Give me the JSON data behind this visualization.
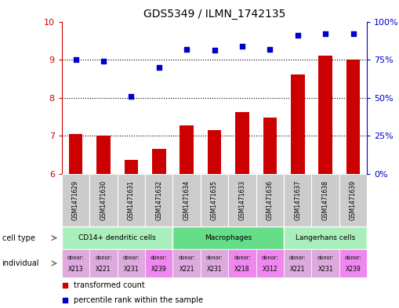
{
  "title": "GDS5349 / ILMN_1742135",
  "samples": [
    "GSM1471629",
    "GSM1471630",
    "GSM1471631",
    "GSM1471632",
    "GSM1471634",
    "GSM1471635",
    "GSM1471633",
    "GSM1471636",
    "GSM1471637",
    "GSM1471638",
    "GSM1471639"
  ],
  "transformed_count": [
    7.05,
    7.0,
    6.38,
    6.65,
    7.28,
    7.15,
    7.62,
    7.48,
    8.62,
    9.1,
    9.0
  ],
  "percentile_rank": [
    75,
    74,
    51,
    70,
    82,
    81,
    84,
    82,
    91,
    92,
    92
  ],
  "ylim": [
    6,
    10
  ],
  "y_left_ticks": [
    6,
    7,
    8,
    9,
    10
  ],
  "y_right_ticks": [
    0,
    25,
    50,
    75,
    100
  ],
  "y_right_labels": [
    "0%",
    "25%",
    "50%",
    "75%",
    "100%"
  ],
  "bar_color": "#cc0000",
  "dot_color": "#0000cc",
  "cell_groups": [
    {
      "label": "CD14+ dendritic cells",
      "start": 0,
      "end": 3,
      "color": "#aaeebb"
    },
    {
      "label": "Macrophages",
      "start": 4,
      "end": 7,
      "color": "#66dd88"
    },
    {
      "label": "Langerhans cells",
      "start": 8,
      "end": 10,
      "color": "#aaeebb"
    }
  ],
  "donors": [
    "X213",
    "X221",
    "X231",
    "X239",
    "X221",
    "X231",
    "X218",
    "X312",
    "X221",
    "X231",
    "X239"
  ],
  "donor_colors": [
    "#ddaadd",
    "#ddaadd",
    "#ddaadd",
    "#ee88ee",
    "#ddaadd",
    "#ddaadd",
    "#ee88ee",
    "#ee88ee",
    "#ddaadd",
    "#ddaadd",
    "#ee88ee"
  ],
  "dotted_yticks": [
    7,
    8,
    9
  ],
  "left_axis_color": "#cc0000",
  "right_axis_color": "#0000cc",
  "sample_label_bg": "#cccccc"
}
